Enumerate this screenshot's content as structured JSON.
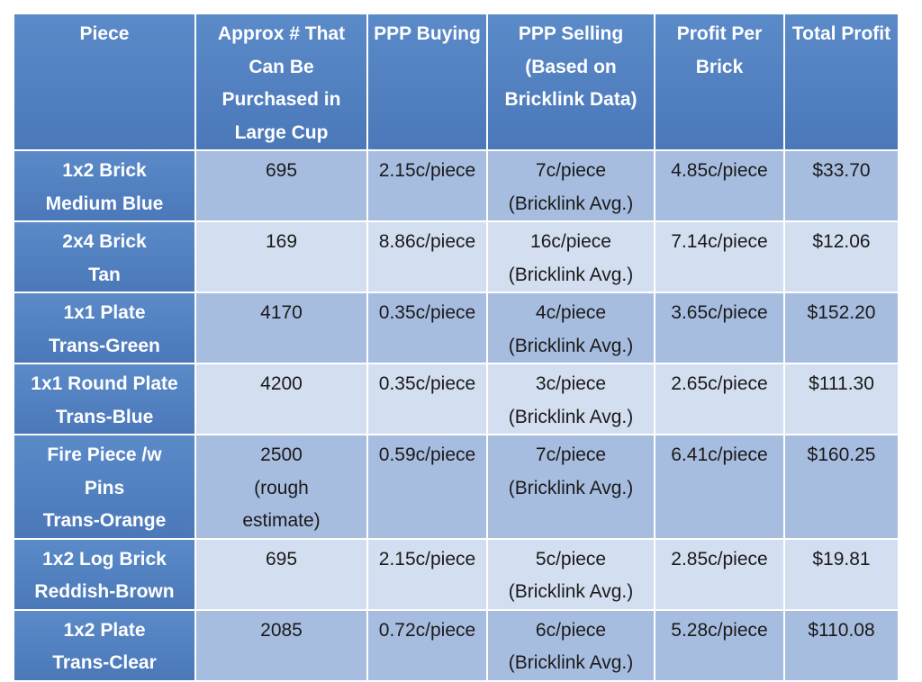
{
  "table": {
    "headers": [
      "Piece",
      "Approx # That Can Be Purchased in Large Cup",
      "PPP Buying",
      "PPP Selling (Based on Bricklink Data)",
      "Profit Per Brick",
      "Total Profit"
    ],
    "rows": [
      {
        "piece": "1x2 Brick\nMedium Blue",
        "qty": "695",
        "buying": "2.15c/piece",
        "selling": "7c/piece\n(Bricklink Avg.)",
        "profit_per_brick": "4.85c/piece",
        "total_profit": "$33.70"
      },
      {
        "piece": "2x4 Brick\nTan",
        "qty": "169",
        "buying": "8.86c/piece",
        "selling": "16c/piece\n(Bricklink Avg.)",
        "profit_per_brick": "7.14c/piece",
        "total_profit": "$12.06"
      },
      {
        "piece": "1x1 Plate\nTrans-Green",
        "qty": "4170",
        "buying": "0.35c/piece",
        "selling": "4c/piece\n(Bricklink Avg.)",
        "profit_per_brick": "3.65c/piece",
        "total_profit": "$152.20"
      },
      {
        "piece": "1x1 Round Plate\nTrans-Blue",
        "qty": "4200",
        "buying": "0.35c/piece",
        "selling": "3c/piece\n(Bricklink Avg.)",
        "profit_per_brick": "2.65c/piece",
        "total_profit": "$111.30"
      },
      {
        "piece": "Fire Piece /w\nPins\nTrans-Orange",
        "qty": "2500\n(rough\nestimate)",
        "buying": "0.59c/piece",
        "selling": "7c/piece\n(Bricklink Avg.)",
        "profit_per_brick": "6.41c/piece",
        "total_profit": "$160.25"
      },
      {
        "piece": "1x2 Log Brick\nReddish-Brown",
        "qty": "695",
        "buying": "2.15c/piece",
        "selling": "5c/piece\n(Bricklink Avg.)",
        "profit_per_brick": "2.85c/piece",
        "total_profit": "$19.81"
      },
      {
        "piece": "1x2 Plate\nTrans-Clear",
        "qty": "2085",
        "buying": "0.72c/piece",
        "selling": "6c/piece\n(Bricklink Avg.)",
        "profit_per_brick": "5.28c/piece",
        "total_profit": "$110.08"
      }
    ]
  }
}
